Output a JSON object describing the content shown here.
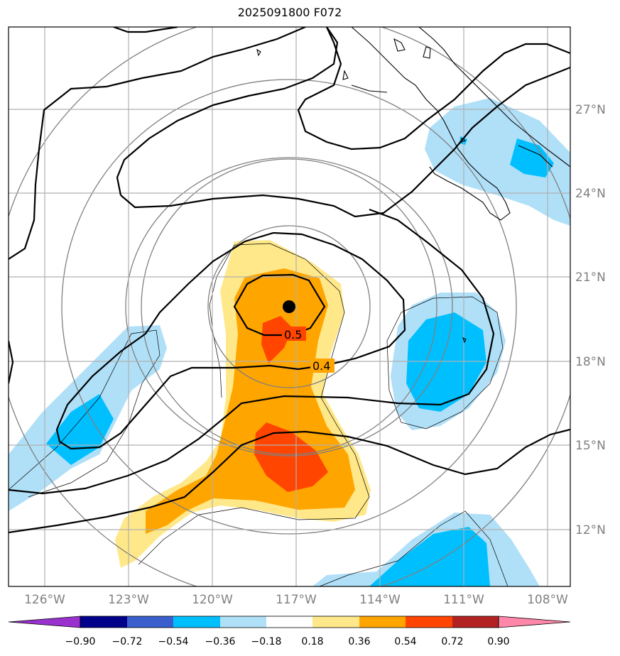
{
  "title": "2025091800 F072",
  "map": {
    "lon_labels": [
      "126°W",
      "123°W",
      "120°W",
      "117°W",
      "114°W",
      "111°W",
      "108°W"
    ],
    "lat_labels": [
      "27°N",
      "24°N",
      "21°N",
      "18°N",
      "15°N",
      "12°N"
    ],
    "contour_labels": [
      "0.5",
      "0.4"
    ],
    "center_marker": "storm-center-dot"
  },
  "colorbar": {
    "tick_labels": [
      "−0.90",
      "−0.72",
      "−0.54",
      "−0.36",
      "−0.18",
      "0.18",
      "0.36",
      "0.54",
      "0.72",
      "0.90"
    ],
    "colors": [
      "#9932cc",
      "#00008b",
      "#3a5fcd",
      "#00bfff",
      "#b0e0f8",
      "#ffffff",
      "#ffe88a",
      "#ffa500",
      "#ff4500",
      "#b22222",
      "#ff88aa"
    ]
  }
}
